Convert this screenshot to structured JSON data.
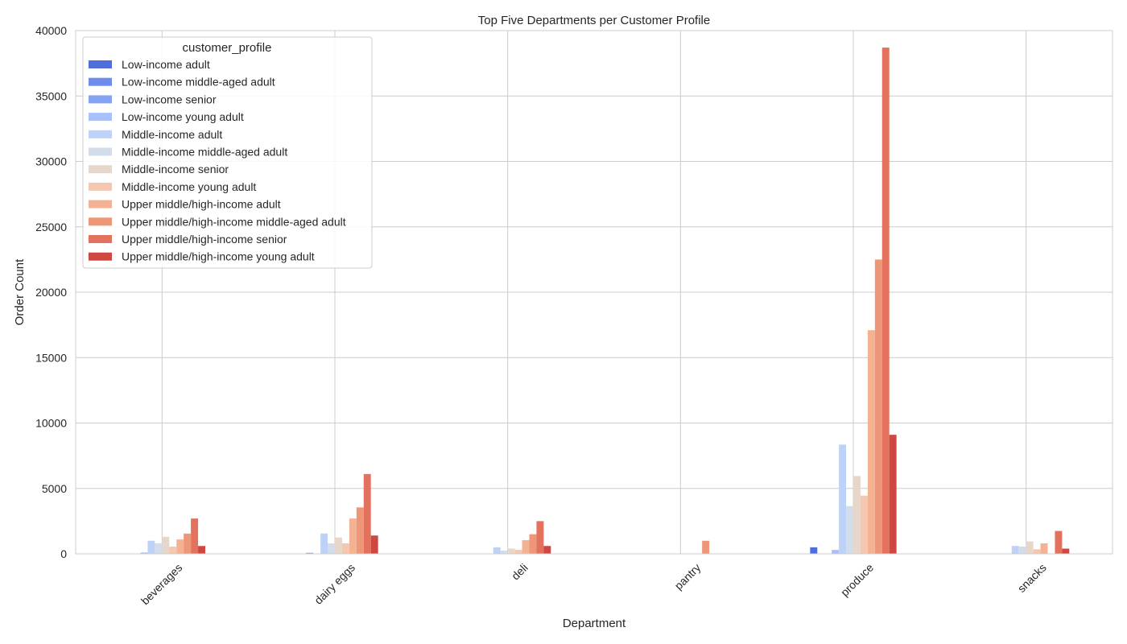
{
  "chart_data": {
    "type": "bar",
    "title": "Top Five Departments per Customer Profile",
    "xlabel": "Department",
    "ylabel": "Order Count",
    "ylim": [
      0,
      40000
    ],
    "yticks": [
      0,
      5000,
      10000,
      15000,
      20000,
      25000,
      30000,
      35000,
      40000
    ],
    "categories": [
      "beverages",
      "dairy eggs",
      "deli",
      "pantry",
      "produce",
      "snacks"
    ],
    "grid": true,
    "legend": {
      "title": "customer_profile",
      "placement": "top-left"
    },
    "series": [
      {
        "name": "Low-income adult",
        "color": "#4f6ddb",
        "values": [
          0,
          0,
          0,
          0,
          500,
          0
        ]
      },
      {
        "name": "Low-income middle-aged adult",
        "color": "#6e8ceb",
        "values": [
          0,
          0,
          0,
          0,
          0,
          0
        ]
      },
      {
        "name": "Low-income senior",
        "color": "#86a2f5",
        "values": [
          0,
          80,
          0,
          0,
          0,
          0
        ]
      },
      {
        "name": "Low-income young adult",
        "color": "#a8c0fc",
        "values": [
          100,
          0,
          0,
          0,
          300,
          0
        ]
      },
      {
        "name": "Middle-income adult",
        "color": "#bdd2f6",
        "values": [
          1000,
          1550,
          500,
          0,
          8350,
          600
        ]
      },
      {
        "name": "Middle-income middle-aged adult",
        "color": "#d2dcea",
        "values": [
          800,
          800,
          250,
          0,
          3650,
          550
        ]
      },
      {
        "name": "Middle-income senior",
        "color": "#e7d6ca",
        "values": [
          1300,
          1250,
          400,
          0,
          5950,
          950
        ]
      },
      {
        "name": "Middle-income young adult",
        "color": "#f3c7b0",
        "values": [
          550,
          800,
          300,
          0,
          4450,
          350
        ]
      },
      {
        "name": "Upper middle/high-income adult",
        "color": "#f4b293",
        "values": [
          1100,
          2700,
          1050,
          0,
          17100,
          800
        ]
      },
      {
        "name": "Upper middle/high-income middle-aged adult",
        "color": "#ee9678",
        "values": [
          1550,
          3550,
          1500,
          1000,
          22500,
          0
        ]
      },
      {
        "name": "Upper middle/high-income senior",
        "color": "#e2725d",
        "values": [
          2700,
          6100,
          2500,
          0,
          38700,
          1750
        ]
      },
      {
        "name": "Upper middle/high-income young adult",
        "color": "#cf4741",
        "values": [
          600,
          1400,
          600,
          0,
          9100,
          400
        ]
      }
    ]
  }
}
